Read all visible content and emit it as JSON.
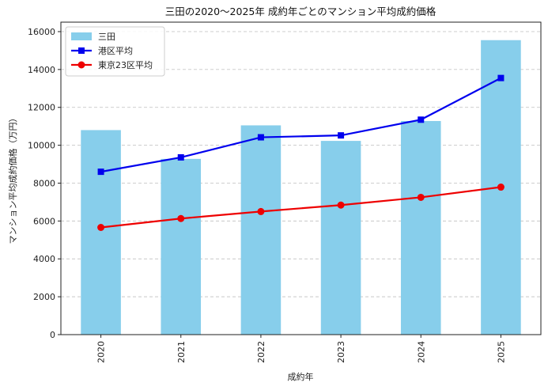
{
  "chart_data": {
    "type": "bar",
    "title": "三田の2020〜2025年 成約年ごとのマンション平均成約価格",
    "xlabel": "成約年",
    "ylabel": "マンション平均成約価格（万円）",
    "categories": [
      "2020",
      "2021",
      "2022",
      "2023",
      "2024",
      "2025"
    ],
    "ylim": [
      0,
      16500
    ],
    "yticks": [
      0,
      2000,
      4000,
      6000,
      8000,
      10000,
      12000,
      14000,
      16000
    ],
    "ytick_labels": [
      "0",
      "2000",
      "4000",
      "6000",
      "8000",
      "10000",
      "12000",
      "14000",
      "16000"
    ],
    "grid": "horizontal-dashed",
    "legend_position": "top-left",
    "series": [
      {
        "name": "三田",
        "kind": "bar",
        "color": "#87ceeb",
        "values": [
          10800,
          9280,
          11050,
          10230,
          11280,
          15550
        ]
      },
      {
        "name": "港区平均",
        "kind": "line",
        "marker": "square",
        "color": "#0000ee",
        "values": [
          8600,
          9360,
          10420,
          10520,
          11350,
          13550
        ]
      },
      {
        "name": "東京23区平均",
        "kind": "line",
        "marker": "circle",
        "color": "#ee0000",
        "values": [
          5660,
          6130,
          6500,
          6840,
          7250,
          7790
        ]
      }
    ]
  }
}
